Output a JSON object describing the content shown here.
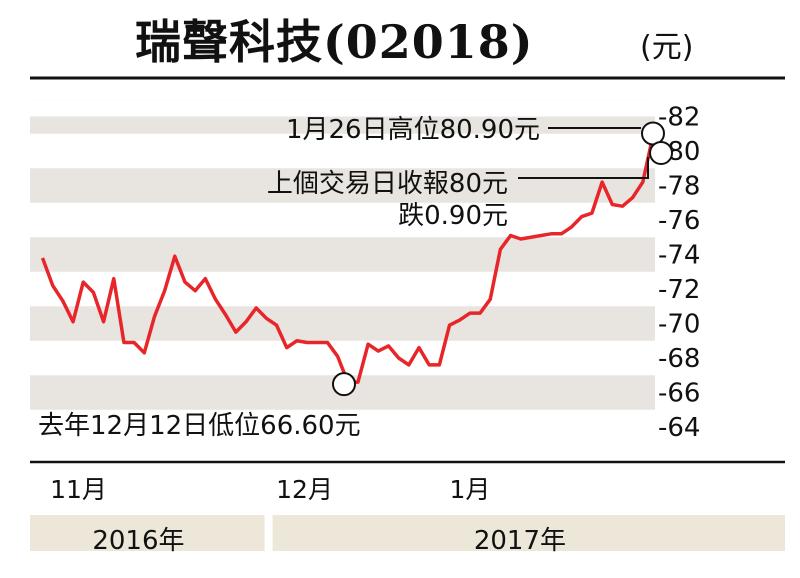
{
  "title": "瑞聲科技(02018)",
  "unit": "(元)",
  "colors": {
    "line": "#e8262a",
    "band": "#e8e5e0",
    "year_band": "#ece7d8"
  },
  "chart_data": {
    "type": "line",
    "title": "瑞聲科技(02018)",
    "ylabel": "(元)",
    "ylim": [
      63,
      83
    ],
    "yticks": [
      "-64",
      "-66",
      "-68",
      "-70",
      "-72",
      "-74",
      "-76",
      "-78",
      "-80",
      "-82"
    ],
    "ytick_values": [
      64,
      66,
      68,
      70,
      72,
      74,
      76,
      78,
      80,
      82
    ],
    "x_index_range": [
      0,
      82
    ],
    "month_labels": [
      {
        "text": "11月",
        "x": 2
      },
      {
        "text": "12月",
        "x": 32
      },
      {
        "text": "1月",
        "x": 55
      }
    ],
    "year_labels": [
      {
        "text": "2016年",
        "start": 0,
        "end": 31
      },
      {
        "text": "2017年",
        "start": 31,
        "end": 82
      }
    ],
    "series": [
      {
        "values": [
          73.8,
          72.2,
          71.3,
          70.1,
          72.4,
          71.8,
          70.1,
          72.6,
          68.9,
          68.9,
          68.3,
          70.4,
          71.9,
          73.9,
          72.4,
          71.9,
          72.6,
          71.4,
          70.5,
          69.5,
          70.1,
          70.9,
          70.3,
          69.9,
          68.6,
          69.0,
          68.9,
          68.9,
          68.9,
          68.1,
          66.6,
          66.6,
          68.8,
          68.4,
          68.7,
          68.0,
          67.6,
          68.6,
          67.6,
          67.6,
          69.9,
          70.2,
          70.6,
          70.6,
          71.4,
          74.3,
          75.1,
          74.9,
          75.0,
          75.1,
          75.2,
          75.2,
          75.6,
          76.2,
          76.4,
          78.2,
          76.9,
          76.8,
          77.3,
          78.2,
          80.9
        ],
        "x_start": 1,
        "x_end": 82
      }
    ],
    "annotations": [
      {
        "text": "1月26日高位80.90元",
        "x": 82,
        "y": 80.9
      },
      {
        "text": "上個交易日收報80元",
        "x": 82.8,
        "y": 80.0
      },
      {
        "text": "跌0.90元",
        "x": 82.8,
        "y": 80.0
      },
      {
        "text": "去年12月12日低位66.60元",
        "x": 41,
        "y": 66.6
      }
    ]
  }
}
